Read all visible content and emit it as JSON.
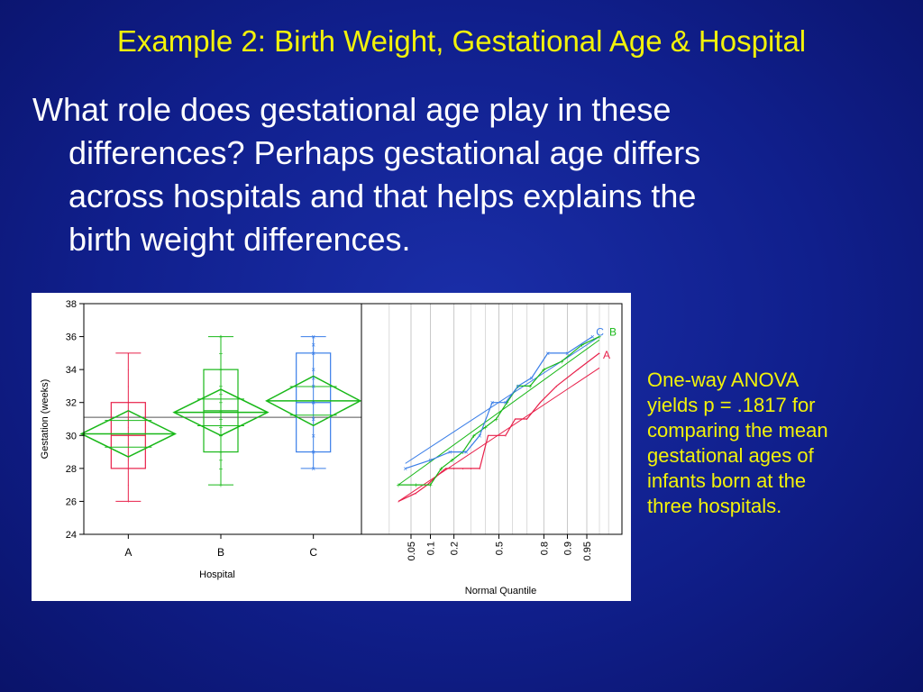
{
  "slide": {
    "title": "Example 2: Birth Weight, Gestational Age & Hospital",
    "body_lines": [
      "What role does gestational age play in these",
      "differences?  Perhaps gestational age differs",
      "across hospitals and that helps explains the",
      "birth weight differences."
    ],
    "note_lines": [
      "One-way ANOVA",
      "yields p = .1817 for",
      "comparing the mean",
      "gestational ages of",
      "infants born at the",
      "three hospitals."
    ]
  },
  "colors": {
    "background": "#101f8c",
    "title": "#f2f20a",
    "body_text": "#ffffff",
    "note_text": "#f2f20a",
    "hospital_A": "#e8204a",
    "hospital_B": "#18b818",
    "hospital_C": "#3a7ee8"
  },
  "chart_data": [
    {
      "type": "box",
      "xlabel": "Hospital",
      "ylabel": "Gestation (weeks)",
      "categories": [
        "A",
        "B",
        "C"
      ],
      "ylim": [
        24,
        38
      ],
      "yticks": [
        24,
        26,
        28,
        30,
        32,
        34,
        36,
        38
      ],
      "grand_mean": 31.1,
      "series": [
        {
          "key": "A",
          "min": 26,
          "q1": 28,
          "median": 30,
          "q3": 32,
          "max": 35,
          "mean": 30.1,
          "ci": [
            28.7,
            31.5
          ],
          "points": [
            26,
            27,
            28,
            28.5,
            29,
            29.5,
            30,
            30,
            30.5,
            31,
            31.5,
            32,
            33,
            34,
            35
          ]
        },
        {
          "key": "B",
          "min": 27,
          "q1": 29,
          "median": 31.5,
          "q3": 34,
          "max": 36,
          "mean": 31.4,
          "ci": [
            30.0,
            32.8
          ],
          "points": [
            27,
            28,
            28.5,
            29,
            30,
            30.5,
            31,
            31.5,
            32,
            32.5,
            33,
            34,
            35,
            36,
            36
          ]
        },
        {
          "key": "C",
          "min": 28,
          "q1": 29,
          "median": 32,
          "q3": 35,
          "max": 36,
          "mean": 32.1,
          "ci": [
            30.6,
            33.6
          ],
          "points": [
            28,
            29,
            30,
            31,
            32,
            32,
            33,
            33.5,
            34,
            35,
            35.5,
            36
          ]
        }
      ]
    },
    {
      "type": "line",
      "xlabel": "Normal Quantile",
      "xtick_labels": [
        "0.05",
        "0.1",
        "0.2",
        "0.5",
        "0.8",
        "0.9",
        "0.95"
      ],
      "xtick_values": [
        0.05,
        0.1,
        0.2,
        0.5,
        0.8,
        0.9,
        0.95
      ],
      "ylim": [
        24,
        38
      ],
      "series": [
        {
          "key": "A",
          "label": "A",
          "x": [
            0.03,
            0.06,
            0.09,
            0.12,
            0.16,
            0.2,
            0.25,
            0.3,
            0.36,
            0.42,
            0.48,
            0.55,
            0.62,
            0.7,
            0.78,
            0.86,
            0.93,
            0.97
          ],
          "y": [
            26,
            26.5,
            27,
            27.5,
            28,
            28,
            28,
            28,
            28,
            30,
            30,
            30,
            31,
            31,
            32,
            33,
            34,
            35
          ]
        },
        {
          "key": "B",
          "label": "B",
          "x": [
            0.03,
            0.06,
            0.1,
            0.14,
            0.19,
            0.25,
            0.32,
            0.4,
            0.48,
            0.56,
            0.64,
            0.72,
            0.8,
            0.88,
            0.94,
            0.97
          ],
          "y": [
            27,
            27,
            27,
            28,
            28.5,
            29,
            30,
            30.5,
            31,
            32,
            33,
            33,
            34,
            34.5,
            35.5,
            36
          ]
        },
        {
          "key": "C",
          "label": "C",
          "x": [
            0.04,
            0.1,
            0.18,
            0.27,
            0.36,
            0.45,
            0.55,
            0.64,
            0.73,
            0.82,
            0.9,
            0.96
          ],
          "y": [
            28,
            28.5,
            29,
            29,
            30,
            32,
            32,
            33,
            33.5,
            35,
            35,
            36
          ]
        }
      ],
      "ref_lines": [
        {
          "key": "A",
          "x": [
            0.03,
            0.97
          ],
          "y": [
            26.0,
            34.1
          ]
        },
        {
          "key": "B",
          "x": [
            0.03,
            0.97
          ],
          "y": [
            27.0,
            35.8
          ]
        },
        {
          "key": "C",
          "x": [
            0.04,
            0.97
          ],
          "y": [
            28.3,
            36.0
          ]
        }
      ]
    }
  ]
}
